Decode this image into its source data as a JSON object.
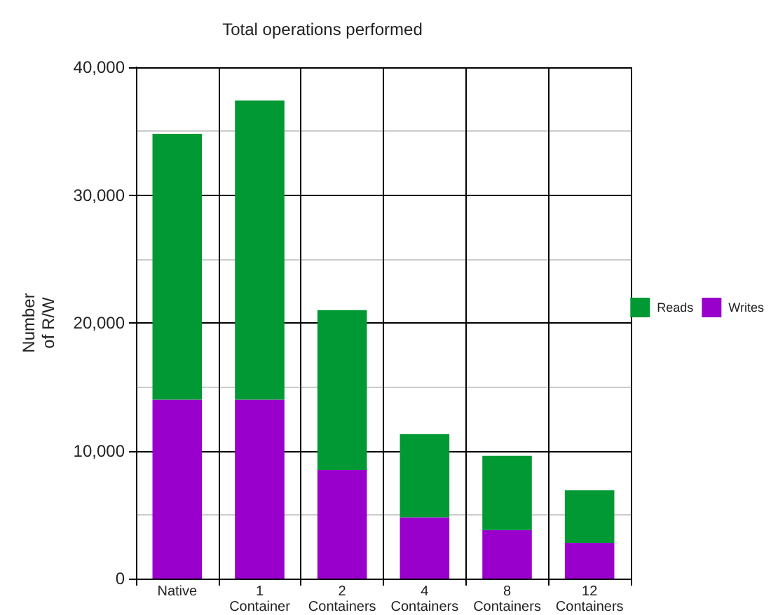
{
  "chart_data": {
    "type": "bar",
    "title": "Total operations performed",
    "ylabel": "Number\nof R/W",
    "categories": [
      "Native",
      "1 Container",
      "2 Containers",
      "4 Containers",
      "8 Containers",
      "12 Containers"
    ],
    "stacked": true,
    "series": [
      {
        "name": "Writes",
        "color": "#9900cc",
        "values": [
          14000,
          14000,
          8500,
          4800,
          3800,
          2800
        ]
      },
      {
        "name": "Reads",
        "color": "#009933",
        "values": [
          20800,
          23400,
          12500,
          6500,
          5800,
          4100
        ]
      }
    ],
    "ylim": [
      0,
      40000
    ],
    "yticks": [
      0,
      {
        "value": 10000,
        "label": "10,000"
      },
      {
        "value": 20000,
        "label": "20,000"
      },
      {
        "value": 30000,
        "label": "30,000"
      },
      {
        "value": 40000,
        "label": "40,000"
      }
    ],
    "grid": true,
    "legend": "right"
  }
}
